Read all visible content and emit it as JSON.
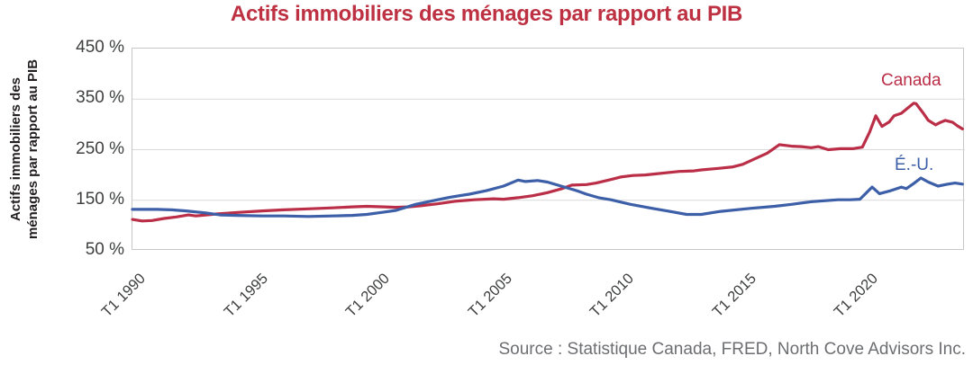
{
  "chart_data": {
    "type": "line",
    "title": "Actifs immobiliers des ménages par rapport au PIB",
    "ylabel_line1": "Actifs immobiliers des",
    "ylabel_line2": "ménages par rapport au PIB",
    "source": "Source : Statistique Canada, FRED, North Cove Advisors Inc.",
    "xlim": [
      1990,
      2024.1
    ],
    "ylim": [
      50,
      450
    ],
    "grid": "horizontal only",
    "gridlines": [
      150,
      250,
      350
    ],
    "legend_position": "labels next to line ends, right side",
    "y_ticks": [
      {
        "value": 450,
        "label": "450 %"
      },
      {
        "value": 350,
        "label": "350 %"
      },
      {
        "value": 250,
        "label": "250 %"
      },
      {
        "value": 150,
        "label": "150 %"
      },
      {
        "value": 50,
        "label": "50 %"
      }
    ],
    "x_ticks": [
      {
        "value": 1990,
        "label": "T1 1990"
      },
      {
        "value": 1995,
        "label": "T1 1995"
      },
      {
        "value": 2000,
        "label": "T1 2000"
      },
      {
        "value": 2005,
        "label": "T1 2005"
      },
      {
        "value": 2010,
        "label": "T1 2010"
      },
      {
        "value": 2015,
        "label": "T1 2015"
      },
      {
        "value": 2020,
        "label": "T1 2020"
      }
    ],
    "colors": {
      "title": "#bd3142",
      "canada_line": "#bb2e47",
      "us_line": "#3c5fa8",
      "axis_text": "#3f4041",
      "source_text": "#6d6e71",
      "gridline": "#d9d9d9",
      "plot_border": "#c6c6c6"
    },
    "series": [
      {
        "name": "Canada",
        "color": "#bb2e47",
        "points": [
          [
            1990.0,
            112
          ],
          [
            1990.4,
            109
          ],
          [
            1990.8,
            110
          ],
          [
            1991.3,
            114
          ],
          [
            1991.8,
            117
          ],
          [
            1992.3,
            121
          ],
          [
            1992.6,
            119
          ],
          [
            1993.0,
            121
          ],
          [
            1993.5,
            123
          ],
          [
            1994.3,
            126
          ],
          [
            1995.3,
            129
          ],
          [
            1996.2,
            131
          ],
          [
            1997.2,
            133
          ],
          [
            1998.2,
            135
          ],
          [
            1999.0,
            137
          ],
          [
            1999.6,
            138
          ],
          [
            2000.3,
            137
          ],
          [
            2000.8,
            136
          ],
          [
            2001.3,
            137
          ],
          [
            2001.8,
            139
          ],
          [
            2002.5,
            143
          ],
          [
            2003.2,
            148
          ],
          [
            2004.0,
            151
          ],
          [
            2004.8,
            153
          ],
          [
            2005.2,
            152
          ],
          [
            2005.8,
            155
          ],
          [
            2006.4,
            159
          ],
          [
            2007.0,
            165
          ],
          [
            2007.6,
            173
          ],
          [
            2008.0,
            180
          ],
          [
            2008.6,
            181
          ],
          [
            2009.0,
            184
          ],
          [
            2009.6,
            191
          ],
          [
            2010.0,
            196
          ],
          [
            2010.5,
            199
          ],
          [
            2011.0,
            200
          ],
          [
            2011.4,
            202
          ],
          [
            2012.0,
            205
          ],
          [
            2012.4,
            207
          ],
          [
            2013.0,
            208
          ],
          [
            2013.3,
            210
          ],
          [
            2014.0,
            213
          ],
          [
            2014.6,
            216
          ],
          [
            2015.0,
            221
          ],
          [
            2015.5,
            232
          ],
          [
            2016.0,
            243
          ],
          [
            2016.5,
            260
          ],
          [
            2017.0,
            257
          ],
          [
            2017.4,
            256
          ],
          [
            2017.8,
            254
          ],
          [
            2018.1,
            256
          ],
          [
            2018.5,
            250
          ],
          [
            2019.0,
            252
          ],
          [
            2019.5,
            252
          ],
          [
            2019.9,
            255
          ],
          [
            2020.2,
            285
          ],
          [
            2020.45,
            317
          ],
          [
            2020.7,
            296
          ],
          [
            2021.0,
            305
          ],
          [
            2021.2,
            317
          ],
          [
            2021.5,
            322
          ],
          [
            2021.8,
            334
          ],
          [
            2022.0,
            342
          ],
          [
            2022.1,
            341
          ],
          [
            2022.4,
            322
          ],
          [
            2022.6,
            308
          ],
          [
            2022.9,
            299
          ],
          [
            2023.1,
            304
          ],
          [
            2023.3,
            308
          ],
          [
            2023.6,
            304
          ],
          [
            2023.8,
            297
          ],
          [
            2024.0,
            291
          ]
        ]
      },
      {
        "name": "É.-U.",
        "color": "#3c5fa8",
        "points": [
          [
            1990.0,
            132
          ],
          [
            1990.5,
            132
          ],
          [
            1991.0,
            132
          ],
          [
            1991.6,
            131
          ],
          [
            1992.2,
            129
          ],
          [
            1993.0,
            125
          ],
          [
            1993.6,
            121
          ],
          [
            1994.3,
            120
          ],
          [
            1995.3,
            119
          ],
          [
            1996.2,
            119
          ],
          [
            1997.2,
            118
          ],
          [
            1998.2,
            119
          ],
          [
            1999.0,
            120
          ],
          [
            1999.6,
            122
          ],
          [
            2000.2,
            126
          ],
          [
            2000.8,
            130
          ],
          [
            2001.6,
            142
          ],
          [
            2002.3,
            149
          ],
          [
            2003.0,
            156
          ],
          [
            2003.8,
            162
          ],
          [
            2004.5,
            169
          ],
          [
            2005.2,
            178
          ],
          [
            2005.8,
            190
          ],
          [
            2006.1,
            187
          ],
          [
            2006.6,
            189
          ],
          [
            2007.0,
            186
          ],
          [
            2007.7,
            176
          ],
          [
            2008.2,
            169
          ],
          [
            2008.6,
            162
          ],
          [
            2009.1,
            155
          ],
          [
            2009.6,
            151
          ],
          [
            2010.4,
            142
          ],
          [
            2011.3,
            134
          ],
          [
            2012.0,
            128
          ],
          [
            2012.7,
            122
          ],
          [
            2013.3,
            122
          ],
          [
            2014.1,
            128
          ],
          [
            2015.3,
            134
          ],
          [
            2016.3,
            138
          ],
          [
            2017.0,
            142
          ],
          [
            2017.8,
            147
          ],
          [
            2018.9,
            151
          ],
          [
            2019.4,
            151
          ],
          [
            2019.8,
            152
          ],
          [
            2020.3,
            176
          ],
          [
            2020.6,
            163
          ],
          [
            2021.0,
            168
          ],
          [
            2021.5,
            176
          ],
          [
            2021.7,
            173
          ],
          [
            2022.0,
            183
          ],
          [
            2022.3,
            194
          ],
          [
            2022.6,
            186
          ],
          [
            2023.0,
            178
          ],
          [
            2023.4,
            182
          ],
          [
            2023.7,
            184
          ],
          [
            2024.0,
            182
          ]
        ]
      }
    ]
  }
}
